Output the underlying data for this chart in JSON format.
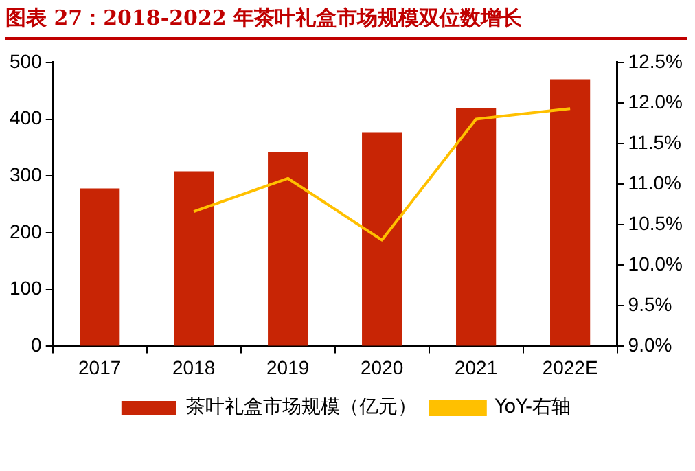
{
  "chart_data": {
    "type": "bar",
    "title": "图表 27：2018-2022 年茶叶礼盒市场规模双位数增长",
    "categories": [
      "2017",
      "2018",
      "2019",
      "2020",
      "2021",
      "2022E"
    ],
    "series": [
      {
        "name": "茶叶礼盒市场规模（亿元）",
        "color": "#c82505",
        "values": [
          278,
          308,
          342,
          377,
          420,
          470
        ]
      },
      {
        "name": "YoY-右轴",
        "type": "line",
        "axis": "y2",
        "color": "#ffc000",
        "values": [
          null,
          10.66,
          11.07,
          10.31,
          11.8,
          11.93
        ]
      }
    ],
    "ylim": [
      0,
      500
    ],
    "yticks": [
      0,
      100,
      200,
      300,
      400,
      500
    ],
    "y2lim": [
      9.0,
      12.5
    ],
    "y2ticks": [
      {
        "value": 9.0,
        "label": "9.0%"
      },
      {
        "value": 9.5,
        "label": "9.5%"
      },
      {
        "value": 10.0,
        "label": "10.0%"
      },
      {
        "value": 10.5,
        "label": "10.5%"
      },
      {
        "value": 11.0,
        "label": "11.0%"
      },
      {
        "value": 11.5,
        "label": "11.5%"
      },
      {
        "value": 12.0,
        "label": "12.0%"
      },
      {
        "value": 12.5,
        "label": "12.5%"
      }
    ],
    "grid": false,
    "legend": "bottom",
    "marker": "none",
    "line_style": "solid"
  }
}
